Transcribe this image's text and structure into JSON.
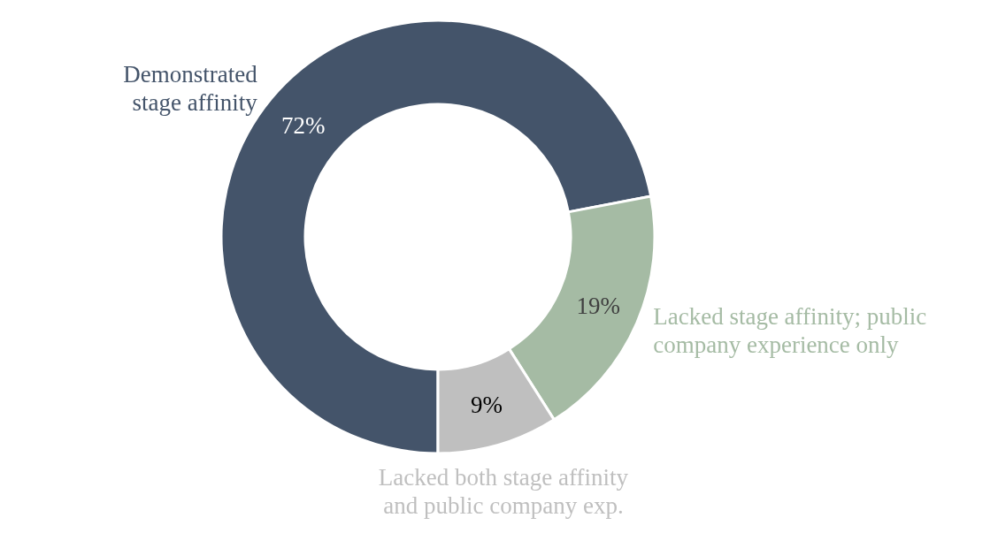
{
  "chart_data": {
    "type": "donut",
    "categories": [
      "Demonstrated stage affinity",
      "Lacked stage affinity; public company experience only",
      "Lacked both stage affinity and public company exp."
    ],
    "values": [
      72,
      19,
      9
    ],
    "colors": [
      "#44546a",
      "#a5bba4",
      "#bfbfbf"
    ],
    "value_labels": [
      "72%",
      "19%",
      "9%"
    ]
  }
}
